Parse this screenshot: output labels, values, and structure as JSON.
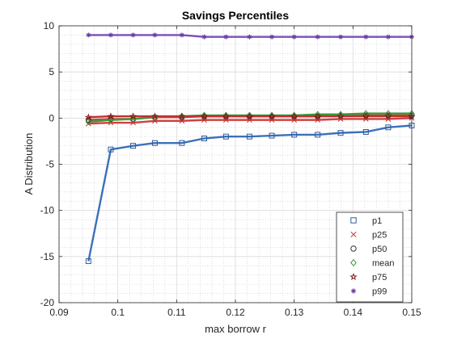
{
  "chart_data": {
    "type": "line",
    "title": "Savings Percentiles",
    "xlabel": "max borrow r",
    "ylabel": "A Distribution",
    "xlim": [
      0.09,
      0.15
    ],
    "ylim": [
      -20,
      10
    ],
    "xticks": [
      0.09,
      0.1,
      0.11,
      0.12,
      0.13,
      0.14,
      0.15
    ],
    "xtick_labels": [
      "0.09",
      "0.1",
      "0.11",
      "0.12",
      "0.13",
      "0.14",
      "0.15"
    ],
    "yticks": [
      -20,
      -15,
      -10,
      -5,
      0,
      5,
      10
    ],
    "ytick_labels": [
      "-20",
      "-15",
      "-10",
      "-5",
      "0",
      "5",
      "10"
    ],
    "grid": "on",
    "minor_grid": "on",
    "legend_position": "bottom-right",
    "x": [
      0.095,
      0.0988,
      0.1026,
      0.1063,
      0.1109,
      0.1147,
      0.1184,
      0.1224,
      0.1262,
      0.13,
      0.134,
      0.1379,
      0.1422,
      0.146,
      0.15
    ],
    "series": [
      {
        "name": "p1",
        "marker": "square",
        "color": "#2e5c9e",
        "values": [
          -15.5,
          -3.4,
          -3.0,
          -2.7,
          -2.7,
          -2.2,
          -2.0,
          -2.0,
          -1.9,
          -1.8,
          -1.8,
          -1.6,
          -1.5,
          -1.0,
          -0.8
        ]
      },
      {
        "name": "p25",
        "marker": "x",
        "color": "#c03030",
        "values": [
          -0.6,
          -0.5,
          -0.5,
          -0.3,
          -0.3,
          -0.2,
          -0.2,
          -0.2,
          -0.2,
          -0.2,
          -0.2,
          -0.1,
          -0.1,
          -0.1,
          0.0
        ]
      },
      {
        "name": "p50",
        "marker": "circle",
        "color": "#333333",
        "values": [
          -0.2,
          -0.1,
          -0.1,
          0.1,
          0.1,
          0.2,
          0.2,
          0.2,
          0.2,
          0.2,
          0.2,
          0.3,
          0.3,
          0.3,
          0.3
        ]
      },
      {
        "name": "mean",
        "marker": "diamond",
        "color": "#3a9a3a",
        "values": [
          -0.4,
          -0.2,
          -0.1,
          0.1,
          0.2,
          0.3,
          0.3,
          0.3,
          0.3,
          0.3,
          0.4,
          0.4,
          0.5,
          0.5,
          0.5
        ]
      },
      {
        "name": "p75",
        "marker": "star",
        "color": "#8a1a1a",
        "values": [
          0.1,
          0.2,
          0.2,
          0.2,
          0.2,
          0.2,
          0.2,
          0.2,
          0.2,
          0.2,
          0.2,
          0.2,
          0.2,
          0.2,
          0.2
        ]
      },
      {
        "name": "p99",
        "marker": "asterisk",
        "color": "#6a3aa2",
        "values": [
          9.0,
          9.0,
          9.0,
          9.0,
          9.0,
          8.8,
          8.8,
          8.8,
          8.8,
          8.8,
          8.8,
          8.8,
          8.8,
          8.8,
          8.8
        ]
      }
    ],
    "line_colors": {
      "p1": "#3c70b8",
      "p25": "#d04040",
      "p50": "#d04040",
      "mean": "#3a9a3a",
      "p75": "#c03030",
      "p99": "#7a50b8"
    }
  }
}
